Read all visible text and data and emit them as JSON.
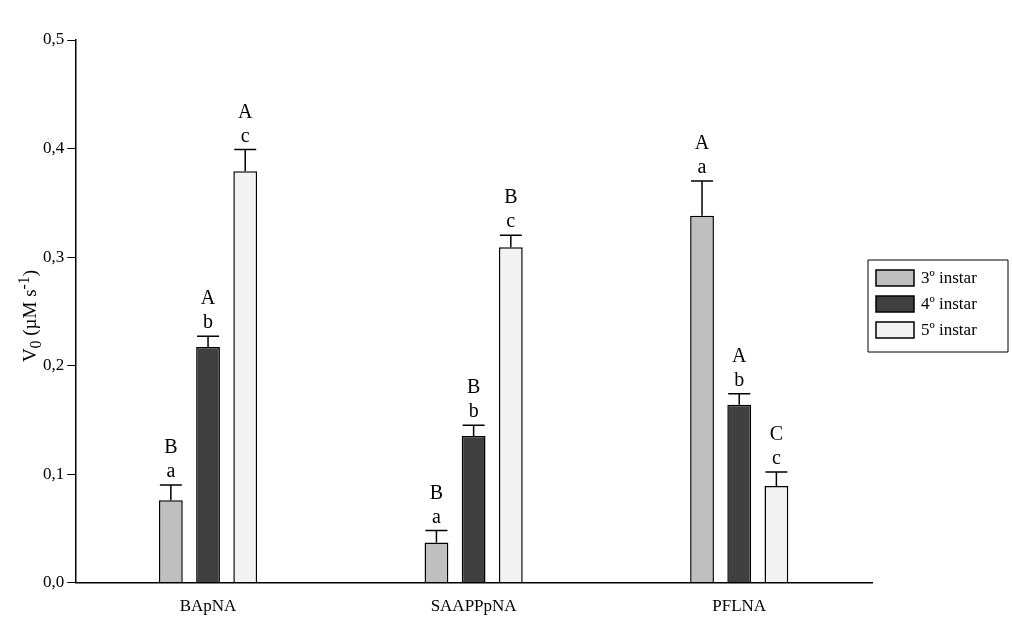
{
  "chart_data": {
    "type": "bar",
    "ylabel": "V$_{0}$ (µM s$^{-1}$)",
    "categories": [
      "BApNA",
      "SAAPPpNA",
      "PFLNA"
    ],
    "series": [
      {
        "name": "3º instar",
        "color": "#bfbfbf",
        "values": [
          0.076,
          0.037,
          0.338
        ],
        "errors": [
          [
            0.076,
            0.09
          ],
          [
            0.037,
            0.048
          ],
          [
            0.338,
            0.37
          ]
        ]
      },
      {
        "name": "4º instar",
        "color": "#404040",
        "values": [
          0.217,
          0.135,
          0.164
        ],
        "errors": [
          [
            0.217,
            0.227
          ],
          [
            0.135,
            0.145
          ],
          [
            0.164,
            0.174
          ]
        ]
      },
      {
        "name": "5º instar",
        "color": "#f2f2f2",
        "values": [
          0.379,
          0.309,
          0.089
        ],
        "errors": [
          [
            0.379,
            0.399
          ],
          [
            0.309,
            0.32
          ],
          [
            0.089,
            0.102
          ]
        ]
      }
    ],
    "ylim": [
      0,
      0.5
    ],
    "yticks": [
      {
        "value": 0,
        "label": "0,0"
      },
      {
        "value": 0.1,
        "label": "0,1"
      },
      {
        "value": 0.2,
        "label": "0,2"
      },
      {
        "value": 0.3,
        "label": "0,3"
      },
      {
        "value": 0.4,
        "label": "0,4"
      },
      {
        "value": 0.5,
        "label": "0,5"
      }
    ],
    "grid": false,
    "legend": "right",
    "annotations": [
      "B\na",
      "A\nb",
      "A\nc",
      "B\na",
      "B\nb",
      "B\nc",
      "A\na",
      "A\nb",
      "C\nc"
    ]
  }
}
